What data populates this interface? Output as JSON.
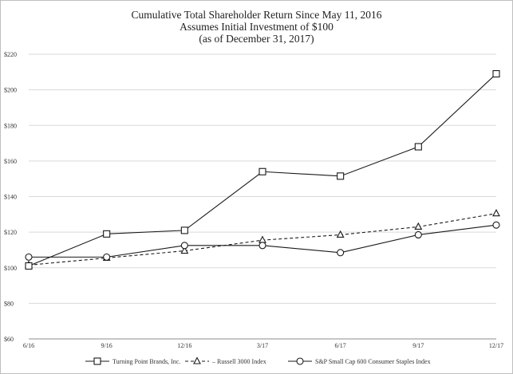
{
  "chart_data": {
    "type": "line",
    "title": "Cumulative Total Shareholder Return Since May 11, 2016",
    "subtitle": [
      "Assumes Initial Investment of $100",
      "(as of December 31, 2017)"
    ],
    "categories": [
      "6/16",
      "9/16",
      "12/16",
      "3/17",
      "6/17",
      "9/17",
      "12/17"
    ],
    "ylim": [
      60,
      220
    ],
    "yticks": [
      60,
      80,
      100,
      120,
      140,
      160,
      180,
      200,
      220
    ],
    "ytick_labels": [
      "$60",
      "$80",
      "$100",
      "$120",
      "$140",
      "$160",
      "$180",
      "$200",
      "$220"
    ],
    "grid": "horizontal",
    "legend_position": "bottom",
    "series": [
      {
        "name": "Turning Point Brands, Inc.",
        "marker": "square",
        "line": "solid",
        "values": [
          101,
          119,
          121,
          154,
          151.5,
          168,
          209
        ]
      },
      {
        "name": "Russell 3000 Index",
        "marker": "triangle",
        "line": "dashed",
        "values": [
          101.5,
          105.5,
          109.5,
          115.5,
          118.5,
          123,
          130.5
        ]
      },
      {
        "name": "S&P Small Cap 600 Consumer Staples Index",
        "marker": "circle",
        "line": "solid",
        "values": [
          106,
          106,
          112.5,
          112.5,
          108.5,
          118.5,
          124
        ]
      }
    ],
    "colors": {
      "line": "#1a1a1a",
      "grid": "#d9d9d9",
      "axis": "#8c8c8c"
    }
  }
}
